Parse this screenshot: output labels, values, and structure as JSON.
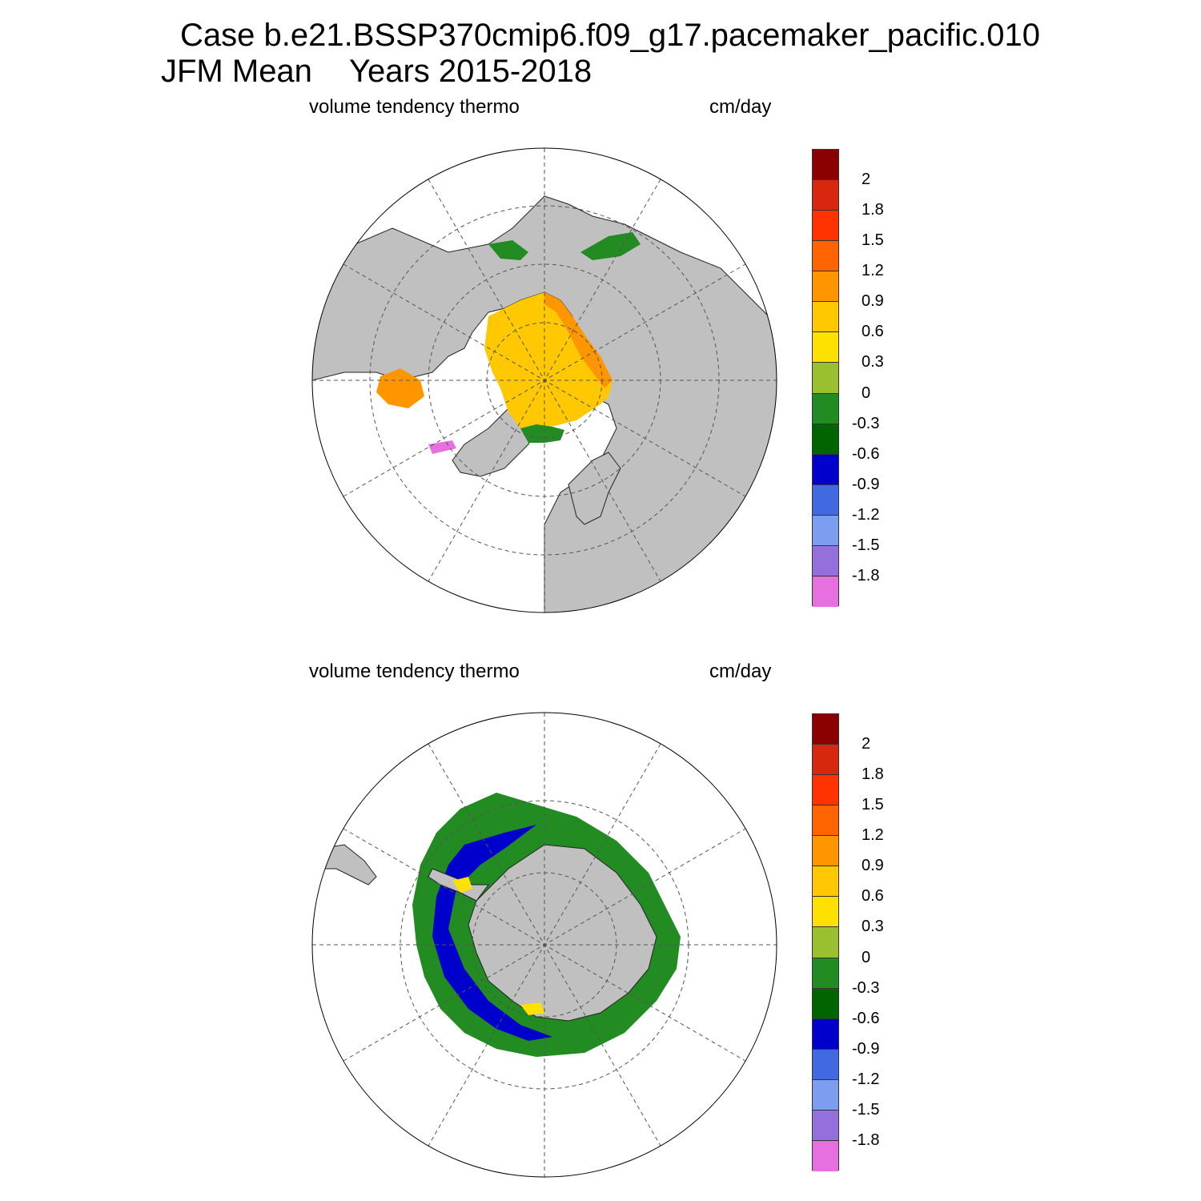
{
  "title": {
    "case_line": "Case b.e21.BSSP370cmip6.f09_g17.pacemaker_pacific.010",
    "season": "JFM Mean",
    "years": "Years 2015-2018"
  },
  "panels": [
    {
      "id": "north",
      "variable": "volume tendency thermo",
      "units": "cm/day",
      "hemisphere": "north"
    },
    {
      "id": "south",
      "variable": "volume tendency thermo",
      "units": "cm/day",
      "hemisphere": "south"
    }
  ],
  "colorbar": {
    "labels": [
      "2",
      "1.8",
      "1.5",
      "1.2",
      "0.9",
      "0.6",
      "0.3",
      "0",
      "-0.3",
      "-0.6",
      "-0.9",
      "-1.2",
      "-1.5",
      "-1.8"
    ],
    "colors": [
      "#8b0000",
      "#d8270f",
      "#ff3300",
      "#ff6400",
      "#ff9600",
      "#ffc800",
      "#ffe100",
      "#9abf2f",
      "#228b22",
      "#006400",
      "#0000cd",
      "#4169e1",
      "#7b9ef0",
      "#9370db",
      "#e670e0"
    ]
  },
  "palette": {
    "land": "#c0c0c0",
    "ocean": "#ffffff",
    "coast": "#222222",
    "grid": "#555555"
  }
}
